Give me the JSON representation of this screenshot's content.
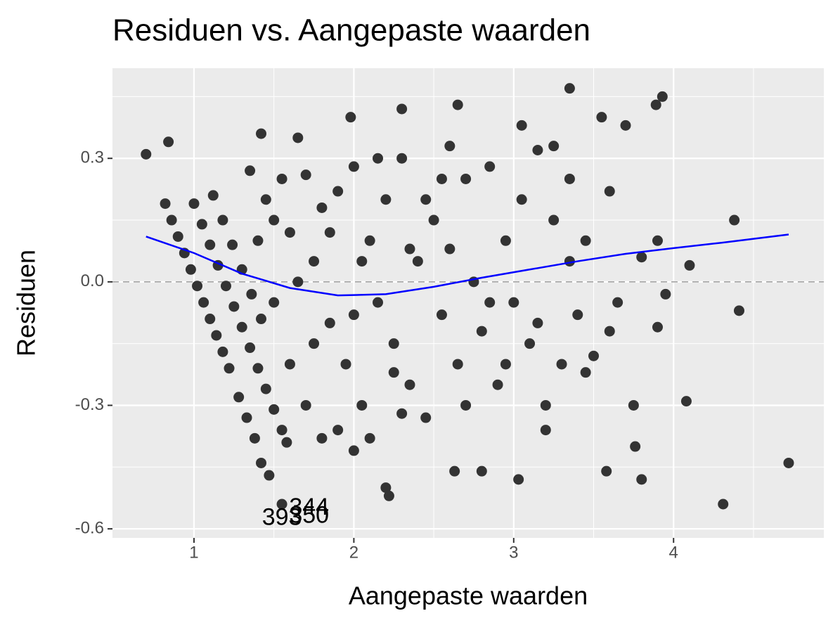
{
  "chart_data": {
    "type": "scatter",
    "title": "Residuen vs. Aangepaste waarden",
    "x_label": "Aangepaste waarden",
    "y_label": "Residuen",
    "xlim": [
      0.49,
      4.94
    ],
    "ylim": [
      -0.622,
      0.519
    ],
    "xticks": [
      1,
      2,
      3,
      4
    ],
    "yticks": [
      0.3,
      {
        "value": 0,
        "label": "0.0"
      },
      -0.3,
      -0.6
    ],
    "x_minor_ticks": [
      1.5,
      2.5,
      3.5,
      4.5
    ],
    "y_minor_ticks": [
      0.45,
      0.15,
      -0.15,
      -0.45
    ],
    "grid": true,
    "hline": 0,
    "color": "#333333",
    "x": [
      0.82,
      0.86,
      0.9,
      0.94,
      0.98,
      1.02,
      1.06,
      1.1,
      1.14,
      1.18,
      1.22,
      1.0,
      1.05,
      1.1,
      1.15,
      1.2,
      1.25,
      1.3,
      1.35,
      1.4,
      1.45,
      1.5,
      1.55,
      1.58,
      1.12,
      1.18,
      1.24,
      1.3,
      1.36,
      1.42,
      1.28,
      1.33,
      1.38,
      1.42,
      1.47,
      1.55,
      0.7,
      0.84,
      1.42,
      1.65,
      2.2,
      2.22,
      2.63,
      2.8,
      3.03,
      3.58,
      3.8,
      4.31,
      4.72,
      4.08,
      4.38,
      4.1,
      4.41,
      3.93,
      3.89,
      3.35,
      2.65,
      2.3,
      1.98,
      3.2,
      3.76,
      3.9,
      3.95,
      3.8,
      3.9,
      1.35,
      1.45,
      1.55,
      1.6,
      1.7,
      1.75,
      1.8,
      1.85,
      1.9,
      1.95,
      2.0,
      2.05,
      2.1,
      2.15,
      2.2,
      2.25,
      2.3,
      2.35,
      2.4,
      2.45,
      2.5,
      2.55,
      2.6,
      2.65,
      2.7,
      2.75,
      2.8,
      2.85,
      2.9,
      2.95,
      3.0,
      3.05,
      3.1,
      3.15,
      3.2,
      3.25,
      3.3,
      3.35,
      3.4,
      3.45,
      3.5,
      3.55,
      3.6,
      3.65,
      3.7,
      3.75,
      1.5,
      1.6,
      1.7,
      1.8,
      1.9,
      2.0,
      2.1,
      2.3,
      1.65,
      1.75,
      2.05,
      2.15,
      2.45,
      2.55,
      2.85,
      3.05,
      3.25,
      2.35,
      2.0,
      2.25,
      2.6,
      1.85,
      2.7,
      3.15,
      3.45,
      3.6,
      1.4,
      1.5,
      2.95,
      3.35
    ],
    "values": [
      0.19,
      0.15,
      0.11,
      0.07,
      0.03,
      -0.01,
      -0.05,
      -0.09,
      -0.13,
      -0.17,
      -0.21,
      0.19,
      0.14,
      0.09,
      0.04,
      -0.01,
      -0.06,
      -0.11,
      -0.16,
      -0.21,
      -0.26,
      -0.31,
      -0.36,
      -0.39,
      0.21,
      0.15,
      0.09,
      0.03,
      -0.03,
      -0.09,
      -0.28,
      -0.33,
      -0.38,
      -0.44,
      -0.47,
      -0.54,
      0.31,
      0.34,
      0.36,
      0.35,
      -0.5,
      -0.52,
      -0.46,
      -0.46,
      -0.48,
      -0.46,
      -0.48,
      -0.54,
      -0.44,
      -0.29,
      0.15,
      0.04,
      -0.07,
      0.45,
      0.43,
      0.47,
      0.43,
      0.42,
      0.4,
      -0.36,
      -0.4,
      -0.11,
      -0.03,
      0.06,
      0.1,
      0.27,
      0.2,
      0.25,
      0.12,
      0.26,
      0.05,
      0.18,
      -0.1,
      0.22,
      -0.2,
      0.28,
      -0.3,
      0.1,
      -0.05,
      0.2,
      -0.15,
      0.3,
      -0.25,
      0.05,
      -0.33,
      0.15,
      -0.08,
      0.33,
      -0.2,
      0.25,
      0.0,
      -0.12,
      0.28,
      -0.25,
      0.1,
      -0.05,
      0.2,
      -0.15,
      0.32,
      -0.3,
      0.15,
      -0.2,
      0.25,
      -0.08,
      0.1,
      -0.18,
      0.4,
      0.22,
      -0.05,
      0.38,
      -0.3,
      -0.05,
      -0.2,
      -0.3,
      -0.38,
      -0.36,
      -0.41,
      -0.38,
      -0.32,
      0.0,
      -0.15,
      0.05,
      0.3,
      0.2,
      0.25,
      -0.05,
      0.38,
      0.33,
      0.08,
      -0.08,
      -0.22,
      0.08,
      0.12,
      -0.3,
      -0.1,
      -0.22,
      -0.12,
      0.1,
      0.15,
      -0.2,
      0.05
    ],
    "smooth": {
      "color": "#0000ff",
      "x": [
        0.7,
        1.0,
        1.3,
        1.6,
        1.9,
        2.2,
        2.5,
        2.8,
        3.1,
        3.4,
        3.7,
        4.0,
        4.3,
        4.72
      ],
      "values": [
        0.11,
        0.07,
        0.02,
        -0.015,
        -0.033,
        -0.03,
        -0.012,
        0.01,
        0.03,
        0.05,
        0.068,
        0.082,
        0.095,
        0.115
      ]
    },
    "annotations": [
      {
        "text": "344",
        "x": 1.72,
        "y": -0.55
      },
      {
        "text": "350",
        "x": 1.72,
        "y": -0.57
      },
      {
        "text": "393",
        "x": 1.55,
        "y": -0.575
      }
    ]
  }
}
